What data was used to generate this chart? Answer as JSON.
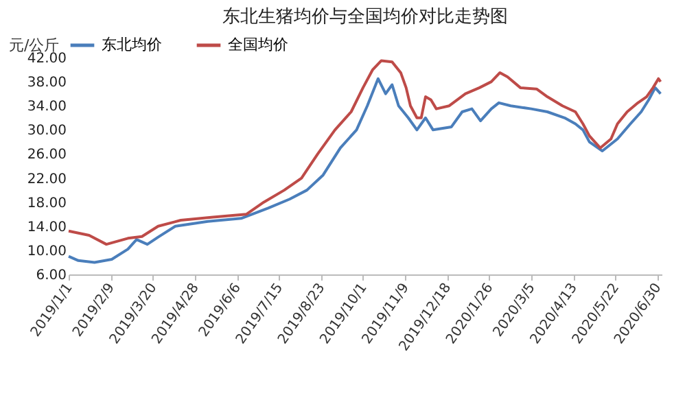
{
  "chart_data": {
    "type": "line",
    "title": "东北生猪均价与全国均价对比走势图",
    "ylabel": "元/公斤",
    "legend": "top",
    "grid": false,
    "line_style": "solid",
    "marker": "none",
    "xlim": [
      "2019-01-01",
      "2020-07-04"
    ],
    "xticks": [
      {
        "value": "2019-01-01",
        "label": "2019/1/1"
      },
      {
        "value": "2019-02-09",
        "label": "2019/2/9"
      },
      {
        "value": "2019-03-20",
        "label": "2019/3/20"
      },
      {
        "value": "2019-04-28",
        "label": "2019/4/28"
      },
      {
        "value": "2019-06-06",
        "label": "2019/6/6"
      },
      {
        "value": "2019-07-15",
        "label": "2019/7/15"
      },
      {
        "value": "2019-08-23",
        "label": "2019/8/23"
      },
      {
        "value": "2019-10-01",
        "label": "2019/10/1"
      },
      {
        "value": "2019-11-09",
        "label": "2019/11/9"
      },
      {
        "value": "2019-12-18",
        "label": "2019/12/18"
      },
      {
        "value": "2020-01-26",
        "label": "2020/1/26"
      },
      {
        "value": "2020-03-05",
        "label": "2020/3/5"
      },
      {
        "value": "2020-04-13",
        "label": "2020/4/13"
      },
      {
        "value": "2020-05-22",
        "label": "2020/5/22"
      },
      {
        "value": "2020-06-30",
        "label": "2020/6/30"
      }
    ],
    "ylim": [
      6,
      42
    ],
    "yticks": [
      {
        "value": 6,
        "label": "6.00"
      },
      {
        "value": 10,
        "label": "10.00"
      },
      {
        "value": 14,
        "label": "14.00"
      },
      {
        "value": 18,
        "label": "18.00"
      },
      {
        "value": 22,
        "label": "22.00"
      },
      {
        "value": 26,
        "label": "26.00"
      },
      {
        "value": 30,
        "label": "30.00"
      },
      {
        "value": 34,
        "label": "34.00"
      },
      {
        "value": 38,
        "label": "38.00"
      },
      {
        "value": 42,
        "label": "42.00"
      }
    ],
    "series": [
      {
        "name": "东北均价",
        "color": "#4a7ebb",
        "x": [
          "2019-01-01",
          "2019-01-10",
          "2019-01-25",
          "2019-02-10",
          "2019-02-25",
          "2019-03-05",
          "2019-03-15",
          "2019-03-25",
          "2019-04-10",
          "2019-05-10",
          "2019-06-10",
          "2019-07-05",
          "2019-07-25",
          "2019-08-10",
          "2019-08-25",
          "2019-09-10",
          "2019-09-25",
          "2019-10-05",
          "2019-10-15",
          "2019-10-22",
          "2019-10-28",
          "2019-11-03",
          "2019-11-12",
          "2019-11-20",
          "2019-11-28",
          "2019-12-05",
          "2019-12-22",
          "2020-01-01",
          "2020-01-10",
          "2020-01-18",
          "2020-01-28",
          "2020-02-04",
          "2020-02-15",
          "2020-03-05",
          "2020-03-20",
          "2020-04-05",
          "2020-04-15",
          "2020-04-22",
          "2020-04-28",
          "2020-05-10",
          "2020-05-24",
          "2020-06-05",
          "2020-06-15",
          "2020-06-22",
          "2020-06-28",
          "2020-07-03"
        ],
        "values": [
          9,
          8.3,
          8,
          8.5,
          10.2,
          11.8,
          11,
          12.2,
          14,
          14.8,
          15.3,
          17,
          18.5,
          20,
          22.5,
          27,
          30,
          34,
          38.5,
          36,
          37.5,
          34,
          32,
          30,
          32,
          30,
          30.5,
          33,
          33.5,
          31.5,
          33.5,
          34.5,
          34,
          33.5,
          33,
          32,
          31,
          30,
          28,
          26.5,
          28.5,
          31,
          33,
          35,
          37,
          36
        ]
      },
      {
        "name": "全国均价",
        "color": "#be4b48",
        "x": [
          "2019-01-01",
          "2019-01-20",
          "2019-02-05",
          "2019-02-25",
          "2019-03-10",
          "2019-03-25",
          "2019-04-15",
          "2019-05-15",
          "2019-06-15",
          "2019-07-01",
          "2019-07-20",
          "2019-08-05",
          "2019-08-20",
          "2019-09-05",
          "2019-09-20",
          "2019-10-01",
          "2019-10-10",
          "2019-10-18",
          "2019-10-28",
          "2019-11-05",
          "2019-11-10",
          "2019-11-14",
          "2019-11-20",
          "2019-11-24",
          "2019-11-28",
          "2019-12-03",
          "2019-12-08",
          "2019-12-20",
          "2020-01-04",
          "2020-01-17",
          "2020-01-28",
          "2020-02-05",
          "2020-02-12",
          "2020-02-24",
          "2020-03-10",
          "2020-03-20",
          "2020-04-03",
          "2020-04-15",
          "2020-04-22",
          "2020-04-28",
          "2020-05-08",
          "2020-05-18",
          "2020-05-24",
          "2020-06-02",
          "2020-06-12",
          "2020-06-20",
          "2020-06-26",
          "2020-07-01",
          "2020-07-03"
        ],
        "values": [
          13.2,
          12.5,
          11,
          12,
          12.3,
          14,
          15,
          15.5,
          16,
          18,
          20,
          22,
          26,
          30,
          33,
          37,
          40,
          41.5,
          41.3,
          39.5,
          37,
          34,
          32,
          32,
          35.5,
          35,
          33.5,
          34,
          36,
          37,
          38,
          39.5,
          38.8,
          37,
          36.8,
          35.5,
          34,
          33,
          31,
          29,
          27,
          28.5,
          31,
          33,
          34.5,
          35.5,
          37,
          38.5,
          38
        ]
      }
    ]
  }
}
